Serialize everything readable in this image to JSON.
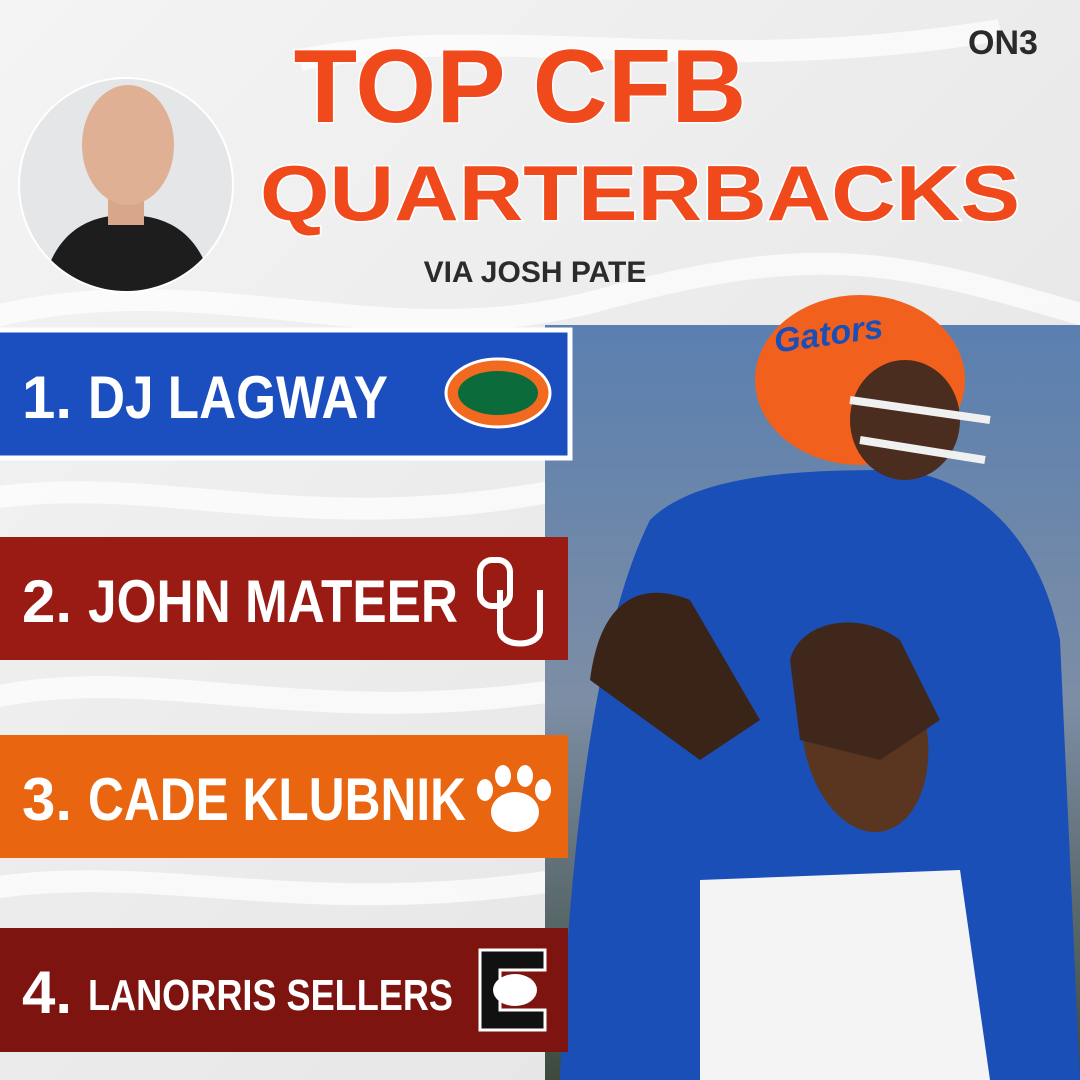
{
  "brand": "ON3",
  "header": {
    "title_line1": "TOP CFB",
    "title_line2": "QUARTERBACKS",
    "subtitle": "VIA JOSH PATE"
  },
  "rankings": [
    {
      "rank": "1.",
      "name": "DJ LAGWAY"
    },
    {
      "rank": "2.",
      "name": "JOHN MATEER"
    },
    {
      "rank": "3.",
      "name": "CADE KLUBNIK"
    },
    {
      "rank": "4.",
      "name": "LANORRIS SELLERS"
    }
  ]
}
